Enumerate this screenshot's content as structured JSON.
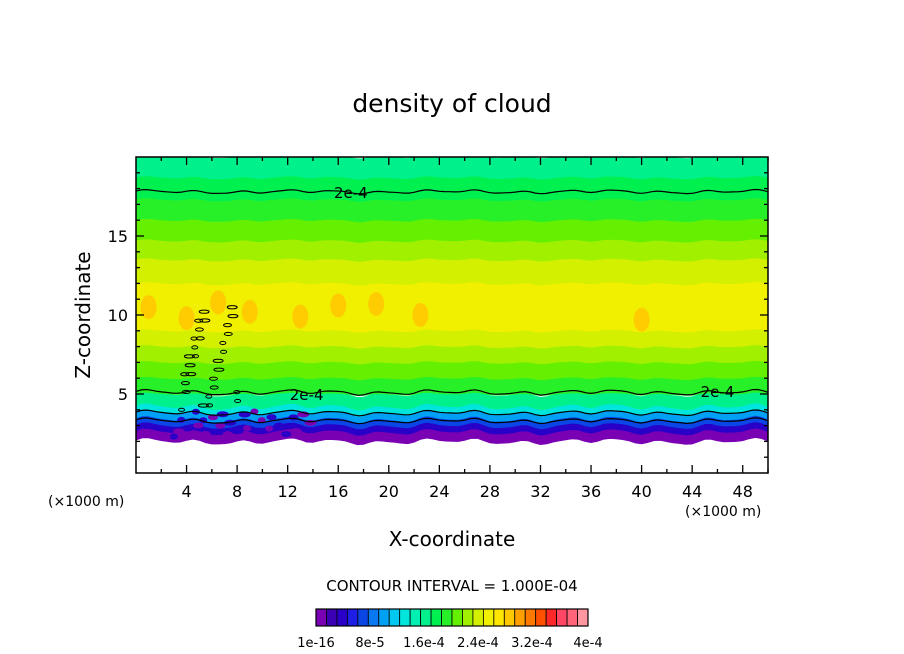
{
  "chart_data": {
    "type": "heatmap",
    "title": "density of cloud",
    "xlabel": "X-coordinate",
    "ylabel": "Z-coordinate",
    "x_unit": "(×1000 m)",
    "xlim": [
      0,
      50
    ],
    "ylim": [
      0,
      20
    ],
    "x_ticks": [
      4,
      8,
      12,
      16,
      20,
      24,
      28,
      32,
      36,
      40,
      44,
      48
    ],
    "y_ticks": [
      5,
      10,
      15
    ],
    "contour_interval_label": "CONTOUR INTERVAL = 1.000E-04",
    "contour_labels": [
      {
        "text": "2e-4",
        "x": 17,
        "z": 17.8
      },
      {
        "text": "2e-4",
        "x": 13.5,
        "z": 5.0
      },
      {
        "text": "2e-4",
        "x": 46,
        "z": 5.2
      }
    ],
    "colorbar": {
      "tick_labels": [
        "1e-16",
        "8e-5",
        "1.6e-4",
        "2.4e-4",
        "3.2e-4",
        "4e-4"
      ],
      "colors": [
        "#7a00b4",
        "#3c00b4",
        "#2800c8",
        "#1e1ee6",
        "#0a46e6",
        "#0a78f0",
        "#00a0f5",
        "#00c8f0",
        "#00e6dc",
        "#00f0b4",
        "#00f08c",
        "#00f050",
        "#28f028",
        "#64f000",
        "#a0f000",
        "#d2f000",
        "#f0f000",
        "#ffe600",
        "#ffc800",
        "#ffa000",
        "#ff7800",
        "#ff5000",
        "#ff2828",
        "#ff4664",
        "#ff6478",
        "#ff96a0"
      ]
    },
    "bands": [
      {
        "z": [
          0,
          2.0
        ],
        "color": "#ffffff"
      },
      {
        "z": [
          2.0,
          2.6
        ],
        "color": "#7a00b4"
      },
      {
        "z": [
          2.6,
          3.0
        ],
        "color": "#2800c8"
      },
      {
        "z": [
          3.0,
          3.4
        ],
        "color": "#0a46e6"
      },
      {
        "z": [
          3.4,
          3.8
        ],
        "color": "#00a0f5"
      },
      {
        "z": [
          3.8,
          4.2
        ],
        "color": "#00e6dc"
      },
      {
        "z": [
          4.2,
          5.0
        ],
        "color": "#00f08c"
      },
      {
        "z": [
          5.0,
          6.0
        ],
        "color": "#28f028"
      },
      {
        "z": [
          6.0,
          7.0
        ],
        "color": "#64f000"
      },
      {
        "z": [
          7.0,
          8.0
        ],
        "color": "#a0f000"
      },
      {
        "z": [
          8.0,
          9.0
        ],
        "color": "#d2f000"
      },
      {
        "z": [
          9.0,
          12.0
        ],
        "color": "#f0f000"
      },
      {
        "z": [
          12.0,
          13.5
        ],
        "color": "#d2f000"
      },
      {
        "z": [
          13.5,
          14.7
        ],
        "color": "#a0f000"
      },
      {
        "z": [
          14.7,
          16.0
        ],
        "color": "#64f000"
      },
      {
        "z": [
          16.0,
          17.3
        ],
        "color": "#28f028"
      },
      {
        "z": [
          17.3,
          18.7
        ],
        "color": "#00f050"
      },
      {
        "z": [
          18.7,
          20.0
        ],
        "color": "#00f08c"
      }
    ],
    "contours_z": [
      17.8,
      5.1,
      3.8,
      3.3
    ]
  }
}
